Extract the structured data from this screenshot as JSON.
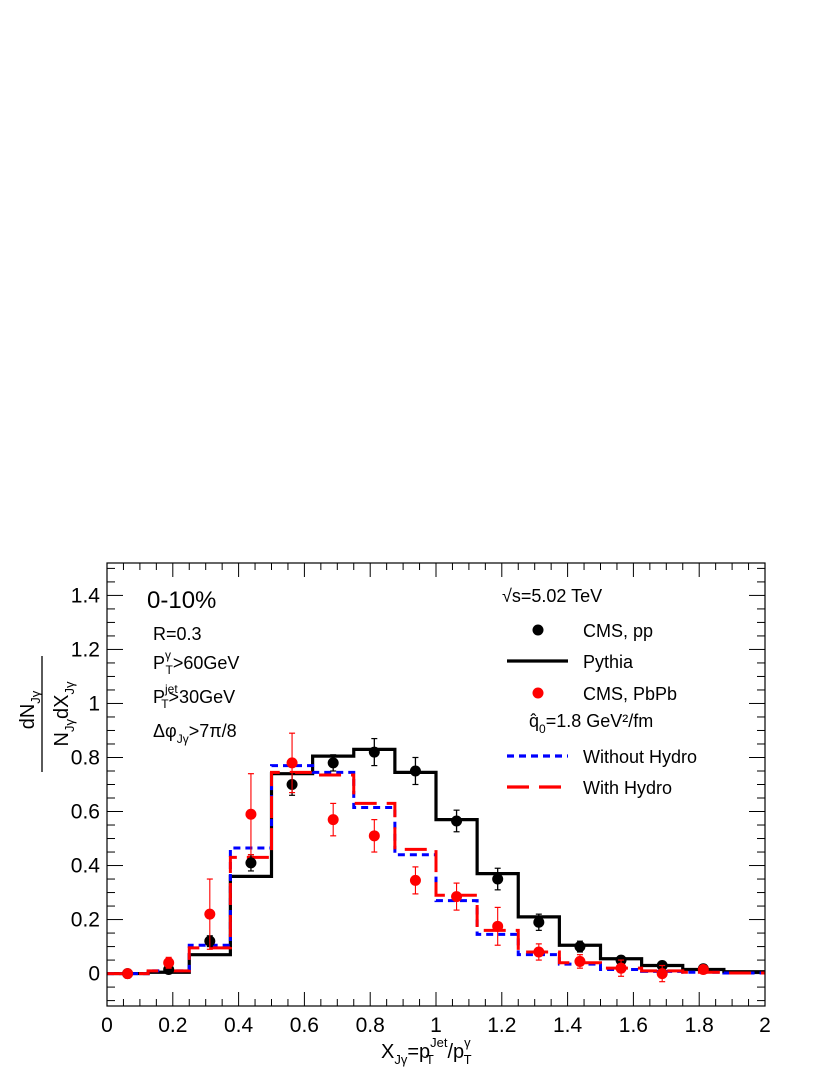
{
  "chart_data": {
    "type": "line",
    "xlim": [
      0,
      2
    ],
    "ylim": [
      -0.12,
      1.52
    ],
    "x_ticks": [
      "0",
      "0.2",
      "0.4",
      "0.6",
      "0.8",
      "1",
      "1.2",
      "1.4",
      "1.6",
      "1.8",
      "2"
    ],
    "y_ticks": [
      "0",
      "0.2",
      "0.4",
      "0.6",
      "0.8",
      "1",
      "1.2",
      "1.4"
    ],
    "xlabel": "X_Jγ=p_T^Jet/p_T^γ",
    "ylabel": "dN_Jγ / N_Jγ dX_Jγ",
    "annotations": {
      "centrality": "0-10%",
      "radius": "R=0.3",
      "photon_cut": "P_T^γ>60GeV",
      "jet_cut": "P_T^jet>30GeV",
      "dphi_cut": "Δφ_Jγ>7π/8",
      "energy": "√s=5.02 TeV",
      "qhat": "q̂_0=1.8 GeV²/fm"
    },
    "legend_position": "top-right",
    "bin_edges": [
      0,
      0.125,
      0.25,
      0.375,
      0.5,
      0.625,
      0.75,
      0.875,
      1.0,
      1.125,
      1.25,
      1.375,
      1.5,
      1.625,
      1.75,
      1.875,
      2.0
    ],
    "series": [
      {
        "name": "CMS, pp",
        "kind": "points",
        "color": "#000000",
        "x": [
          0.0625,
          0.1875,
          0.3125,
          0.4375,
          0.5625,
          0.6875,
          0.8125,
          0.9375,
          1.0625,
          1.1875,
          1.3125,
          1.4375,
          1.5625,
          1.6875,
          1.8125
        ],
        "y": [
          0.0,
          0.015,
          0.12,
          0.41,
          0.7,
          0.78,
          0.82,
          0.75,
          0.565,
          0.35,
          0.19,
          0.1,
          0.05,
          0.03,
          0.018
        ],
        "err": [
          0.01,
          0.01,
          0.02,
          0.03,
          0.04,
          0.03,
          0.05,
          0.05,
          0.04,
          0.04,
          0.03,
          0.02,
          0.015,
          0.01,
          0.008
        ]
      },
      {
        "name": "Pythia",
        "kind": "hist",
        "color": "#000000",
        "values": [
          0.0,
          0.005,
          0.07,
          0.36,
          0.74,
          0.805,
          0.83,
          0.745,
          0.57,
          0.37,
          0.21,
          0.105,
          0.055,
          0.03,
          0.015,
          0.007
        ]
      },
      {
        "name": "CMS, PbPb",
        "kind": "points",
        "color": "#ff0000",
        "x": [
          0.0625,
          0.1875,
          0.3125,
          0.4375,
          0.5625,
          0.6875,
          0.8125,
          0.9375,
          1.0625,
          1.1875,
          1.3125,
          1.4375,
          1.5625,
          1.6875,
          1.8125
        ],
        "y": [
          0.0,
          0.04,
          0.22,
          0.59,
          0.78,
          0.57,
          0.51,
          0.345,
          0.285,
          0.175,
          0.08,
          0.045,
          0.02,
          0.0,
          0.015
        ],
        "err": [
          0.01,
          0.02,
          0.13,
          0.15,
          0.11,
          0.06,
          0.06,
          0.05,
          0.05,
          0.07,
          0.03,
          0.025,
          0.03,
          0.03,
          0.01
        ]
      },
      {
        "name": "Without Hydro",
        "kind": "hist",
        "color": "#0000ff",
        "dash": "short",
        "values": [
          0.0,
          0.01,
          0.105,
          0.465,
          0.77,
          0.745,
          0.615,
          0.44,
          0.27,
          0.145,
          0.07,
          0.035,
          0.015,
          0.008,
          0.005,
          0.002
        ]
      },
      {
        "name": "With Hydro",
        "kind": "hist",
        "color": "#ff0000",
        "dash": "long",
        "values": [
          0.0,
          0.01,
          0.095,
          0.43,
          0.745,
          0.735,
          0.63,
          0.46,
          0.29,
          0.16,
          0.08,
          0.04,
          0.02,
          0.01,
          0.005,
          0.002
        ]
      }
    ]
  }
}
